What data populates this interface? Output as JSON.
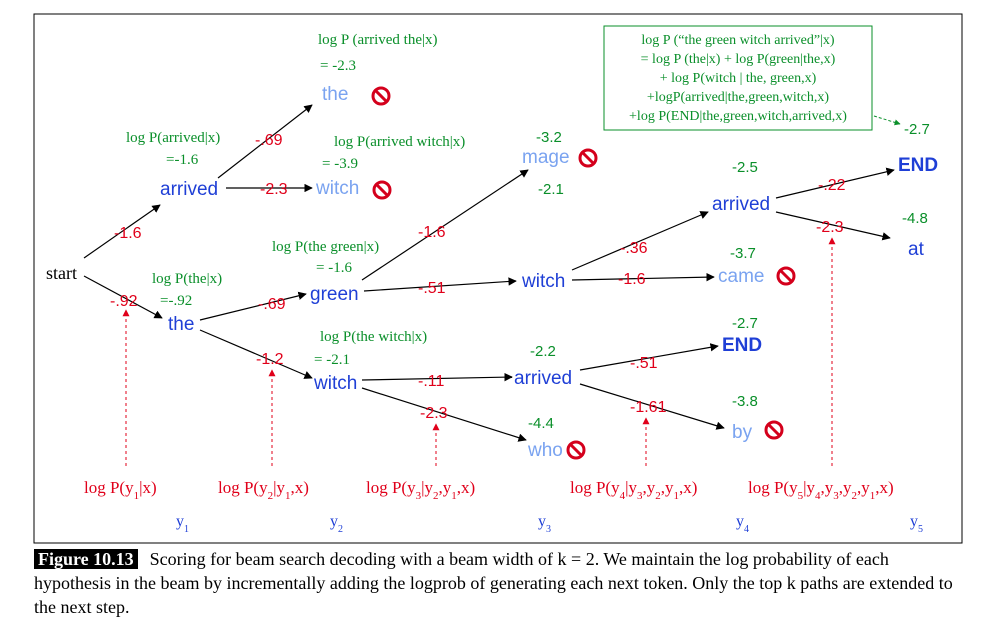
{
  "colors": {
    "word": "#1f3fd6",
    "pruned_word": "#7aa3f0",
    "step_logprob": "#e0001a",
    "cumulative_logprob": "#0a8f2a",
    "pruned_icon": "#d4001c",
    "black": "#000000"
  },
  "nodes": {
    "start": "start",
    "arrived_1": "arrived",
    "the_1": "the",
    "the_2": "the",
    "witch_2a": "witch",
    "green_2": "green",
    "witch_2b": "witch",
    "mage_3": "mage",
    "witch_3": "witch",
    "arrived_3": "arrived",
    "who_3": "who",
    "arrived_4": "arrived",
    "came_4": "came",
    "end_4": "END",
    "by_4": "by",
    "end_5": "END",
    "at_5": "at"
  },
  "edge_logprobs": {
    "start_arrived": "-1.6",
    "start_the": "-.92",
    "arrived_the": "-.69",
    "arrived_witch": "-2.3",
    "the_green": "-.69",
    "the_witch": "-1.2",
    "green_mage": "-1.6",
    "green_witch": "-.51",
    "witch_arrived": "-.11",
    "witch_who": "-2.3",
    "witch_arrived4": "-.36",
    "witch_came": "-1.6",
    "arrived_end4": "-.51",
    "arrived_by": "-1.61",
    "arrived_end5": "-.22",
    "arrived_at": "-2.3"
  },
  "annotations": {
    "arrived_x": [
      "log P(arrived|x)",
      "=-1.6"
    ],
    "the_x": [
      "log P(the|x)",
      "=-.92"
    ],
    "arrived_the_x": [
      "log P (arrived the|x)",
      "= -2.3"
    ],
    "arrived_witch_x": [
      "log P(arrived witch|x)",
      "= -3.9"
    ],
    "the_green_x": [
      "log P(the green|x)",
      "= -1.6"
    ],
    "the_witch_x": [
      "log P(the witch|x)",
      "= -2.1"
    ]
  },
  "scores": {
    "mage": "-3.2",
    "witch3": "-2.1",
    "arrived3": "-2.2",
    "who": "-4.4",
    "arrived4": "-2.5",
    "came": "-3.7",
    "end4": "-2.7",
    "by": "-3.8",
    "end5": "-2.7",
    "at": "-4.8"
  },
  "formula_box": [
    "log P (“the green witch arrived”|x)",
    "= log P (the|x) + log P(green|the,x)",
    "+ log P(witch | the, green,x)",
    "+logP(arrived|the,green,witch,x)",
    "+log P(END|the,green,witch,arrived,x)"
  ],
  "bottom_labels": {
    "p1": "log P(y1|x)",
    "p2": "log P(y2|y1,x)",
    "p3": "log P(y3|y2,y1,x)",
    "p4": "log P(y4|y3,y2,y1,x)",
    "p5": "log P(y5|y4,y3,y2,y1,x)",
    "y1": "y1",
    "y2": "y2",
    "y3": "y3",
    "y4": "y4",
    "y5": "y5"
  },
  "caption": {
    "label": "Figure 10.13",
    "text": "Scoring for beam search decoding with a beam width of k = 2. We maintain the log probability of each hypothesis in the beam by incrementally adding the logprob of generating each next token. Only the top k paths are extended to the next step."
  }
}
